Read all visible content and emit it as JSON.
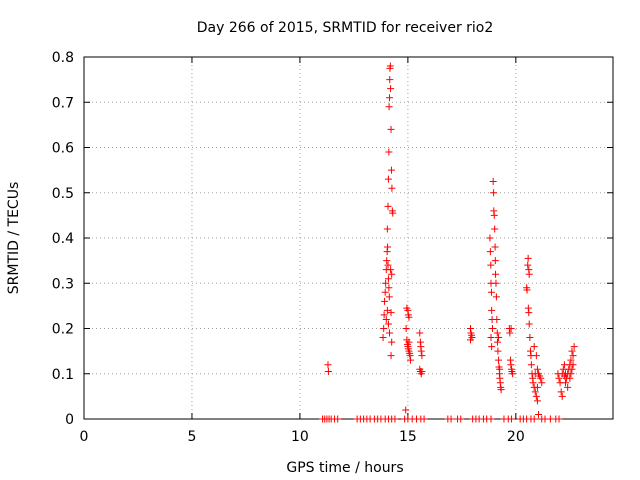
{
  "chart_data": {
    "type": "scatter",
    "title": "Day 266 of 2015, SRMTID for receiver rio2",
    "xlabel": "GPS time / hours",
    "ylabel": "SRMTID / TECUs",
    "xlim": [
      0,
      24.5
    ],
    "ylim": [
      0,
      0.8
    ],
    "x_ticks": [
      0,
      5,
      10,
      15,
      20
    ],
    "x_tick_labels": [
      "0",
      "5",
      "10",
      "15",
      "20"
    ],
    "y_ticks": [
      0,
      0.1,
      0.2,
      0.3,
      0.4,
      0.5,
      0.6,
      0.7,
      0.8
    ],
    "y_tick_labels": [
      "0",
      "0.1",
      "0.2",
      "0.3",
      "0.4",
      "0.5",
      "0.6",
      "0.7",
      "0.8"
    ],
    "grid": true,
    "marker": "+",
    "color": "#ff0000",
    "series": [
      {
        "name": "SRMTID",
        "points": [
          [
            11.05,
            0
          ],
          [
            11.15,
            0
          ],
          [
            11.25,
            0
          ],
          [
            11.35,
            0
          ],
          [
            11.45,
            0
          ],
          [
            11.6,
            0
          ],
          [
            11.75,
            0
          ],
          [
            11.3,
            0.12
          ],
          [
            11.32,
            0.105
          ],
          [
            12.65,
            0
          ],
          [
            12.8,
            0
          ],
          [
            12.95,
            0
          ],
          [
            13.1,
            0
          ],
          [
            13.25,
            0
          ],
          [
            13.45,
            0
          ],
          [
            13.6,
            0
          ],
          [
            13.75,
            0
          ],
          [
            13.85,
            0.18
          ],
          [
            13.88,
            0.2
          ],
          [
            13.9,
            0.23
          ],
          [
            13.92,
            0.26
          ],
          [
            13.95,
            0.28
          ],
          [
            13.97,
            0.3
          ],
          [
            14.0,
            0.33
          ],
          [
            14.02,
            0.35
          ],
          [
            14.04,
            0.37
          ],
          [
            14.06,
            0.38
          ],
          [
            14.08,
            0.34
          ],
          [
            14.1,
            0.31
          ],
          [
            14.12,
            0.29
          ],
          [
            14.14,
            0.27
          ],
          [
            14.0,
            0.22
          ],
          [
            14.05,
            0.24
          ],
          [
            14.1,
            0.21
          ],
          [
            14.15,
            0.19
          ],
          [
            14.05,
            0.42
          ],
          [
            14.08,
            0.47
          ],
          [
            14.1,
            0.53
          ],
          [
            14.12,
            0.59
          ],
          [
            14.13,
            0.69
          ],
          [
            14.15,
            0.71
          ],
          [
            14.16,
            0.75
          ],
          [
            14.17,
            0.775
          ],
          [
            14.19,
            0.78
          ],
          [
            14.2,
            0.73
          ],
          [
            14.22,
            0.64
          ],
          [
            14.24,
            0.55
          ],
          [
            14.26,
            0.51
          ],
          [
            14.28,
            0.46
          ],
          [
            14.3,
            0.455
          ],
          [
            14.2,
            0.33
          ],
          [
            14.25,
            0.32
          ],
          [
            14.22,
            0.235
          ],
          [
            14.25,
            0.17
          ],
          [
            14.22,
            0.14
          ],
          [
            13.95,
            0
          ],
          [
            14.1,
            0
          ],
          [
            14.25,
            0
          ],
          [
            14.4,
            0
          ],
          [
            14.85,
            0
          ],
          [
            15.0,
            0
          ],
          [
            15.2,
            0
          ],
          [
            15.4,
            0
          ],
          [
            15.6,
            0
          ],
          [
            15.75,
            0
          ],
          [
            14.9,
            0.02
          ],
          [
            14.95,
            0.245
          ],
          [
            15.0,
            0.24
          ],
          [
            15.02,
            0.23
          ],
          [
            15.05,
            0.225
          ],
          [
            14.92,
            0.2
          ],
          [
            14.95,
            0.175
          ],
          [
            14.98,
            0.165
          ],
          [
            15.0,
            0.16
          ],
          [
            15.02,
            0.155
          ],
          [
            15.05,
            0.15
          ],
          [
            15.08,
            0.145
          ],
          [
            15.1,
            0.14
          ],
          [
            15.12,
            0.13
          ],
          [
            15.05,
            0.17
          ],
          [
            15.55,
            0.19
          ],
          [
            15.58,
            0.17
          ],
          [
            15.6,
            0.16
          ],
          [
            15.62,
            0.15
          ],
          [
            15.65,
            0.14
          ],
          [
            15.55,
            0.11
          ],
          [
            15.58,
            0.105
          ],
          [
            15.62,
            0.1
          ],
          [
            15.65,
            0.105
          ],
          [
            16.85,
            0
          ],
          [
            17.0,
            0
          ],
          [
            17.3,
            0
          ],
          [
            17.45,
            0
          ],
          [
            17.9,
            0.2
          ],
          [
            17.92,
            0.19
          ],
          [
            17.95,
            0.185
          ],
          [
            17.97,
            0.18
          ],
          [
            17.9,
            0.175
          ],
          [
            18.0,
            0
          ],
          [
            18.15,
            0
          ],
          [
            18.3,
            0
          ],
          [
            18.5,
            0
          ],
          [
            18.65,
            0
          ],
          [
            18.85,
            0
          ],
          [
            18.8,
            0.4
          ],
          [
            18.82,
            0.37
          ],
          [
            18.84,
            0.34
          ],
          [
            18.85,
            0.3
          ],
          [
            18.87,
            0.28
          ],
          [
            18.88,
            0.24
          ],
          [
            18.9,
            0.22
          ],
          [
            18.92,
            0.2
          ],
          [
            18.85,
            0.18
          ],
          [
            18.88,
            0.16
          ],
          [
            18.95,
            0.525
          ],
          [
            18.97,
            0.5
          ],
          [
            18.98,
            0.46
          ],
          [
            19.0,
            0.45
          ],
          [
            19.02,
            0.42
          ],
          [
            19.04,
            0.38
          ],
          [
            19.05,
            0.35
          ],
          [
            19.06,
            0.32
          ],
          [
            19.08,
            0.3
          ],
          [
            19.1,
            0.27
          ],
          [
            19.12,
            0.22
          ],
          [
            19.14,
            0.19
          ],
          [
            19.15,
            0.17
          ],
          [
            19.17,
            0.15
          ],
          [
            19.2,
            0.13
          ],
          [
            19.22,
            0.115
          ],
          [
            19.24,
            0.1
          ],
          [
            19.26,
            0.09
          ],
          [
            19.28,
            0.08
          ],
          [
            19.3,
            0.07
          ],
          [
            19.32,
            0.065
          ],
          [
            19.2,
            0.18
          ],
          [
            19.25,
            0.11
          ],
          [
            19.7,
            0.2
          ],
          [
            19.72,
            0.19
          ],
          [
            19.75,
            0.13
          ],
          [
            19.77,
            0.12
          ],
          [
            19.8,
            0.11
          ],
          [
            19.82,
            0.105
          ],
          [
            19.85,
            0.1
          ],
          [
            19.78,
            0.2
          ],
          [
            19.45,
            0
          ],
          [
            19.65,
            0
          ],
          [
            19.8,
            0
          ],
          [
            20.2,
            0
          ],
          [
            20.35,
            0
          ],
          [
            20.5,
            0.29
          ],
          [
            20.52,
            0.285
          ],
          [
            20.55,
            0.34
          ],
          [
            20.57,
            0.355
          ],
          [
            20.6,
            0.33
          ],
          [
            20.62,
            0.32
          ],
          [
            20.58,
            0.245
          ],
          [
            20.6,
            0.235
          ],
          [
            20.62,
            0.21
          ],
          [
            20.65,
            0.18
          ],
          [
            20.68,
            0.15
          ],
          [
            20.7,
            0.14
          ],
          [
            20.72,
            0.12
          ],
          [
            20.75,
            0.1
          ],
          [
            20.78,
            0.09
          ],
          [
            20.8,
            0.08
          ],
          [
            20.85,
            0.07
          ],
          [
            20.9,
            0.06
          ],
          [
            20.95,
            0.05
          ],
          [
            21.0,
            0.04
          ],
          [
            20.85,
            0.16
          ],
          [
            20.95,
            0.14
          ],
          [
            21.0,
            0.11
          ],
          [
            21.05,
            0.1
          ],
          [
            21.1,
            0.095
          ],
          [
            21.15,
            0.09
          ],
          [
            21.2,
            0.08
          ],
          [
            20.9,
            0.1
          ],
          [
            21.0,
            0.07
          ],
          [
            20.5,
            0
          ],
          [
            20.7,
            0
          ],
          [
            20.85,
            0
          ],
          [
            21.05,
            0.01
          ],
          [
            21.2,
            0
          ],
          [
            21.35,
            0
          ],
          [
            21.6,
            0
          ],
          [
            21.85,
            0
          ],
          [
            22.0,
            0
          ],
          [
            21.95,
            0.1
          ],
          [
            22.0,
            0.09
          ],
          [
            22.05,
            0.08
          ],
          [
            22.1,
            0.06
          ],
          [
            22.15,
            0.05
          ],
          [
            22.2,
            0.11
          ],
          [
            22.25,
            0.12
          ],
          [
            22.3,
            0.1
          ],
          [
            22.35,
            0.09
          ],
          [
            22.4,
            0.1
          ],
          [
            22.45,
            0.11
          ],
          [
            22.5,
            0.12
          ],
          [
            22.55,
            0.13
          ],
          [
            22.6,
            0.15
          ],
          [
            22.65,
            0.14
          ],
          [
            22.3,
            0.08
          ],
          [
            22.4,
            0.07
          ],
          [
            22.5,
            0.09
          ],
          [
            22.55,
            0.1
          ],
          [
            22.6,
            0.11
          ],
          [
            22.65,
            0.12
          ],
          [
            22.7,
            0.16
          ],
          [
            22.15,
            0.1
          ],
          [
            22.25,
            0.095
          ]
        ]
      }
    ]
  }
}
